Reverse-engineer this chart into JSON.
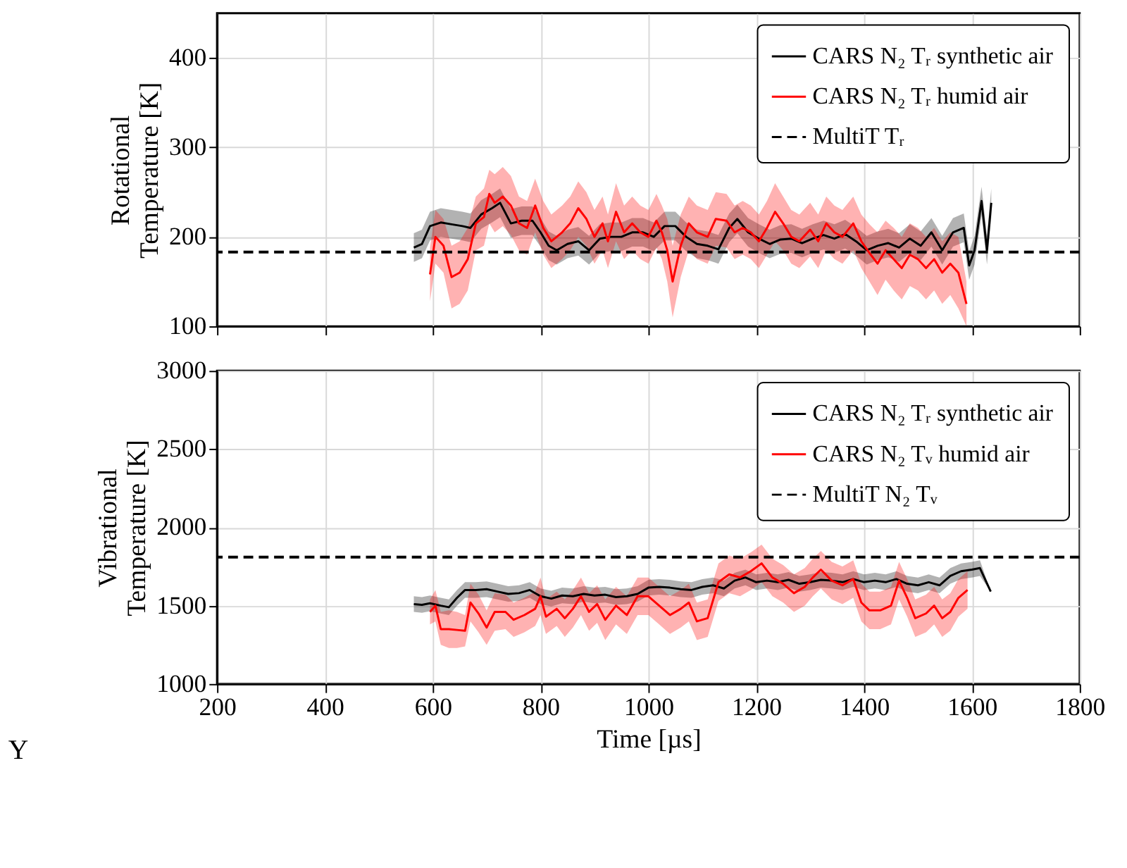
{
  "chart_data": [
    {
      "type": "line",
      "ylabel": "Rotational Temperature [K]",
      "xlim": [
        200,
        1800
      ],
      "xticks": [
        200,
        400,
        600,
        800,
        1000,
        1200,
        1400,
        1600,
        1800
      ],
      "ylim": [
        100,
        450
      ],
      "yticks": [
        100,
        200,
        300,
        400
      ],
      "tick_labels": "y",
      "grid": true,
      "legend": "top right",
      "marker": "none",
      "line_style": "solid",
      "series": [
        {
          "name": "CARS N₂ Tᵣ synthetic air",
          "color": "#000000",
          "x": [
            565,
            580,
            595,
            615,
            635,
            655,
            670,
            690,
            710,
            725,
            745,
            765,
            785,
            800,
            815,
            830,
            850,
            870,
            890,
            910,
            930,
            950,
            970,
            990,
            1010,
            1030,
            1050,
            1070,
            1090,
            1110,
            1130,
            1150,
            1165,
            1185,
            1205,
            1225,
            1245,
            1265,
            1285,
            1305,
            1325,
            1345,
            1365,
            1385,
            1405,
            1425,
            1445,
            1465,
            1485,
            1505,
            1525,
            1545,
            1565,
            1585,
            1595,
            1605,
            1618,
            1628,
            1636
          ],
          "values": [
            188,
            192,
            212,
            216,
            214,
            212,
            210,
            225,
            232,
            238,
            215,
            218,
            218,
            205,
            190,
            185,
            192,
            195,
            185,
            198,
            200,
            200,
            205,
            205,
            200,
            212,
            212,
            200,
            192,
            190,
            186,
            210,
            220,
            205,
            198,
            192,
            197,
            198,
            193,
            198,
            202,
            198,
            203,
            195,
            185,
            190,
            193,
            188,
            198,
            190,
            205,
            185,
            205,
            210,
            168,
            185,
            240,
            185,
            238
          ],
          "lower": [
            172,
            176,
            196,
            200,
            198,
            196,
            194,
            209,
            216,
            222,
            199,
            202,
            202,
            189,
            174,
            169,
            176,
            179,
            169,
            182,
            184,
            184,
            189,
            189,
            184,
            196,
            196,
            184,
            176,
            174,
            170,
            194,
            204,
            189,
            182,
            176,
            181,
            182,
            177,
            182,
            186,
            182,
            187,
            179,
            169,
            174,
            177,
            172,
            182,
            174,
            189,
            169,
            189,
            194,
            152,
            169,
            224,
            169,
            222
          ],
          "upper": [
            204,
            208,
            228,
            232,
            230,
            228,
            226,
            241,
            248,
            254,
            231,
            234,
            234,
            221,
            206,
            201,
            208,
            211,
            201,
            214,
            216,
            216,
            221,
            221,
            216,
            228,
            228,
            216,
            208,
            206,
            202,
            226,
            236,
            221,
            214,
            208,
            213,
            214,
            209,
            214,
            218,
            214,
            219,
            211,
            201,
            206,
            209,
            204,
            214,
            206,
            221,
            201,
            221,
            226,
            184,
            201,
            256,
            201,
            254
          ]
        },
        {
          "name": "CARS N₂ Tᵣ humid air",
          "color": "#ff0000",
          "x": [
            595,
            605,
            620,
            635,
            650,
            665,
            680,
            695,
            705,
            715,
            730,
            745,
            760,
            775,
            790,
            805,
            820,
            840,
            855,
            870,
            885,
            900,
            915,
            925,
            940,
            955,
            970,
            985,
            1000,
            1015,
            1025,
            1035,
            1045,
            1060,
            1075,
            1090,
            1110,
            1125,
            1145,
            1160,
            1175,
            1190,
            1205,
            1220,
            1235,
            1250,
            1265,
            1280,
            1300,
            1315,
            1330,
            1345,
            1360,
            1380,
            1395,
            1410,
            1425,
            1440,
            1455,
            1470,
            1485,
            1500,
            1515,
            1530,
            1545,
            1560,
            1575,
            1590
          ],
          "values": [
            158,
            200,
            190,
            155,
            160,
            175,
            215,
            222,
            248,
            238,
            245,
            235,
            215,
            210,
            235,
            210,
            195,
            205,
            215,
            232,
            220,
            200,
            215,
            195,
            228,
            205,
            215,
            205,
            200,
            218,
            205,
            185,
            150,
            190,
            215,
            205,
            200,
            220,
            218,
            205,
            210,
            205,
            195,
            210,
            228,
            215,
            200,
            195,
            208,
            195,
            215,
            205,
            200,
            215,
            195,
            182,
            170,
            185,
            175,
            165,
            180,
            175,
            165,
            175,
            160,
            170,
            160,
            125
          ],
          "lower": [
            128,
            170,
            160,
            120,
            125,
            140,
            185,
            190,
            215,
            205,
            212,
            202,
            185,
            180,
            205,
            180,
            165,
            175,
            185,
            200,
            190,
            170,
            185,
            165,
            195,
            175,
            185,
            175,
            170,
            188,
            175,
            150,
            110,
            155,
            185,
            175,
            170,
            190,
            188,
            175,
            180,
            175,
            165,
            180,
            195,
            185,
            170,
            165,
            178,
            165,
            185,
            175,
            170,
            185,
            165,
            150,
            135,
            152,
            140,
            130,
            145,
            140,
            130,
            140,
            125,
            135,
            120,
            100
          ],
          "upper": [
            188,
            230,
            220,
            190,
            195,
            210,
            245,
            254,
            275,
            270,
            278,
            268,
            245,
            240,
            265,
            240,
            225,
            235,
            245,
            262,
            250,
            230,
            245,
            225,
            260,
            235,
            245,
            235,
            230,
            248,
            235,
            220,
            190,
            225,
            245,
            235,
            230,
            250,
            248,
            235,
            240,
            235,
            225,
            240,
            260,
            245,
            230,
            225,
            238,
            225,
            245,
            235,
            230,
            245,
            225,
            214,
            205,
            218,
            210,
            200,
            215,
            210,
            200,
            210,
            195,
            205,
            200,
            150
          ]
        }
      ],
      "ref_lines": [
        {
          "axis": "y",
          "value": 183,
          "label": "MultiT Tᵣ",
          "color": "#000000",
          "line_style": "dashed"
        }
      ]
    },
    {
      "type": "line",
      "xlabel": "Time [µs]",
      "ylabel": "Vibrational Temperature [K]",
      "xlim": [
        200,
        1800
      ],
      "xticks": [
        200,
        400,
        600,
        800,
        1000,
        1200,
        1400,
        1600,
        1800
      ],
      "ylim": [
        1000,
        3000
      ],
      "yticks": [
        1000,
        1500,
        2000,
        2500,
        3000
      ],
      "grid": true,
      "legend": "top right",
      "marker": "none",
      "line_style": "solid",
      "series": [
        {
          "name": "CARS N₂ Tᵣ synthetic air",
          "color": "#000000",
          "x": [
            565,
            580,
            595,
            615,
            630,
            645,
            660,
            680,
            700,
            720,
            740,
            760,
            780,
            800,
            820,
            840,
            860,
            880,
            900,
            920,
            940,
            960,
            980,
            1000,
            1020,
            1040,
            1060,
            1080,
            1100,
            1120,
            1140,
            1160,
            1180,
            1200,
            1220,
            1240,
            1260,
            1280,
            1300,
            1320,
            1340,
            1360,
            1380,
            1400,
            1420,
            1440,
            1460,
            1480,
            1500,
            1520,
            1540,
            1560,
            1580,
            1600,
            1615,
            1635
          ],
          "values": [
            1510,
            1505,
            1515,
            1500,
            1490,
            1550,
            1600,
            1600,
            1605,
            1590,
            1575,
            1580,
            1600,
            1560,
            1545,
            1565,
            1560,
            1575,
            1565,
            1570,
            1555,
            1560,
            1575,
            1615,
            1620,
            1615,
            1605,
            1600,
            1620,
            1630,
            1610,
            1660,
            1680,
            1650,
            1660,
            1650,
            1665,
            1640,
            1650,
            1665,
            1660,
            1650,
            1670,
            1650,
            1660,
            1650,
            1670,
            1640,
            1630,
            1650,
            1630,
            1690,
            1720,
            1730,
            1740,
            1590
          ],
          "lower": [
            1460,
            1455,
            1465,
            1450,
            1440,
            1500,
            1550,
            1550,
            1555,
            1540,
            1525,
            1530,
            1550,
            1510,
            1495,
            1515,
            1510,
            1525,
            1515,
            1520,
            1505,
            1510,
            1525,
            1565,
            1570,
            1565,
            1555,
            1550,
            1570,
            1580,
            1560,
            1610,
            1630,
            1600,
            1610,
            1600,
            1615,
            1590,
            1600,
            1615,
            1610,
            1600,
            1620,
            1600,
            1610,
            1600,
            1620,
            1590,
            1580,
            1600,
            1580,
            1640,
            1670,
            1680,
            1690,
            1590
          ],
          "upper": [
            1560,
            1555,
            1565,
            1550,
            1540,
            1600,
            1650,
            1650,
            1655,
            1640,
            1625,
            1630,
            1650,
            1610,
            1595,
            1615,
            1610,
            1625,
            1615,
            1620,
            1605,
            1610,
            1625,
            1665,
            1670,
            1665,
            1655,
            1650,
            1670,
            1680,
            1660,
            1710,
            1730,
            1700,
            1710,
            1700,
            1715,
            1690,
            1700,
            1715,
            1710,
            1700,
            1720,
            1700,
            1710,
            1700,
            1720,
            1690,
            1680,
            1700,
            1680,
            1740,
            1770,
            1780,
            1790,
            1590
          ]
        },
        {
          "name": "CARS N₂ Tᵥ humid air",
          "color": "#ff0000",
          "x": [
            595,
            605,
            615,
            630,
            645,
            660,
            670,
            685,
            700,
            715,
            735,
            750,
            770,
            790,
            800,
            810,
            830,
            845,
            860,
            875,
            890,
            905,
            920,
            940,
            960,
            980,
            1000,
            1020,
            1040,
            1060,
            1075,
            1090,
            1110,
            1130,
            1150,
            1170,
            1190,
            1210,
            1230,
            1250,
            1270,
            1290,
            1305,
            1320,
            1340,
            1360,
            1380,
            1395,
            1410,
            1430,
            1450,
            1465,
            1480,
            1495,
            1515,
            1530,
            1545,
            1560,
            1575,
            1592
          ],
          "values": [
            1460,
            1500,
            1350,
            1350,
            1345,
            1340,
            1520,
            1450,
            1360,
            1460,
            1460,
            1410,
            1440,
            1480,
            1560,
            1430,
            1480,
            1420,
            1480,
            1560,
            1460,
            1510,
            1410,
            1500,
            1440,
            1560,
            1560,
            1500,
            1440,
            1480,
            1520,
            1400,
            1420,
            1650,
            1700,
            1680,
            1720,
            1770,
            1680,
            1640,
            1580,
            1620,
            1680,
            1730,
            1660,
            1630,
            1670,
            1520,
            1470,
            1470,
            1500,
            1660,
            1550,
            1420,
            1450,
            1500,
            1420,
            1460,
            1550,
            1600
          ],
          "lower": [
            1380,
            1400,
            1250,
            1230,
            1230,
            1240,
            1400,
            1330,
            1250,
            1340,
            1350,
            1300,
            1330,
            1370,
            1440,
            1320,
            1370,
            1300,
            1360,
            1440,
            1340,
            1390,
            1280,
            1380,
            1320,
            1440,
            1440,
            1380,
            1320,
            1360,
            1400,
            1280,
            1300,
            1530,
            1580,
            1560,
            1600,
            1650,
            1560,
            1520,
            1460,
            1500,
            1560,
            1610,
            1540,
            1510,
            1550,
            1400,
            1350,
            1350,
            1380,
            1540,
            1430,
            1300,
            1330,
            1380,
            1300,
            1340,
            1430,
            1480
          ],
          "upper": [
            1540,
            1600,
            1460,
            1470,
            1460,
            1440,
            1640,
            1570,
            1470,
            1580,
            1570,
            1520,
            1550,
            1590,
            1680,
            1540,
            1590,
            1540,
            1600,
            1680,
            1580,
            1630,
            1540,
            1620,
            1560,
            1680,
            1680,
            1620,
            1560,
            1600,
            1640,
            1520,
            1540,
            1770,
            1820,
            1800,
            1840,
            1890,
            1800,
            1760,
            1700,
            1740,
            1800,
            1850,
            1780,
            1750,
            1790,
            1640,
            1590,
            1590,
            1620,
            1780,
            1670,
            1540,
            1570,
            1620,
            1540,
            1580,
            1670,
            1720
          ]
        }
      ],
      "ref_lines": [
        {
          "axis": "y",
          "value": 1810,
          "label": "MultiT N₂ Tᵥ",
          "color": "#000000",
          "line_style": "dashed"
        }
      ],
      "annotations": [
        "Y"
      ]
    }
  ]
}
